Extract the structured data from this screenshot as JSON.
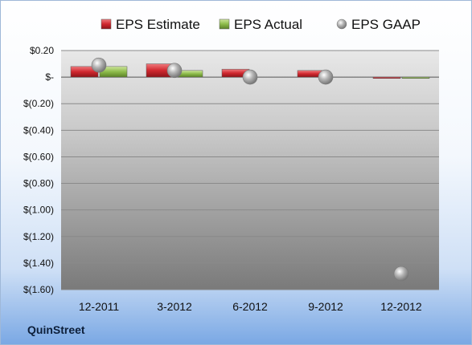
{
  "brand": "QuinStreet",
  "chart_data": {
    "type": "bar",
    "categories": [
      "12-2011",
      "3-2012",
      "6-2012",
      "9-2012",
      "12-2012"
    ],
    "series": [
      {
        "name": "EPS Estimate",
        "kind": "bar",
        "color": "#d0282f",
        "values": [
          0.08,
          0.1,
          0.06,
          0.05,
          -0.01
        ]
      },
      {
        "name": "EPS Actual",
        "kind": "bar",
        "color": "#8dbb4a",
        "values": [
          0.08,
          0.05,
          null,
          null,
          -0.01
        ]
      },
      {
        "name": "EPS GAAP",
        "kind": "marker",
        "color": "#a9a9a9",
        "values": [
          0.09,
          0.05,
          0.0,
          0.0,
          -1.48
        ]
      }
    ],
    "ylim": [
      -1.6,
      0.2
    ],
    "yticks": [
      0.2,
      0.0,
      -0.2,
      -0.4,
      -0.6,
      -0.8,
      -1.0,
      -1.2,
      -1.4,
      -1.6
    ],
    "ytick_labels": [
      "$0.20",
      "$-",
      "$(0.20)",
      "$(0.40)",
      "$(0.60)",
      "$(0.80)",
      "$(1.00)",
      "$(1.20)",
      "$(1.40)",
      "$(1.60)"
    ],
    "grid": true,
    "legend_position": "top"
  }
}
